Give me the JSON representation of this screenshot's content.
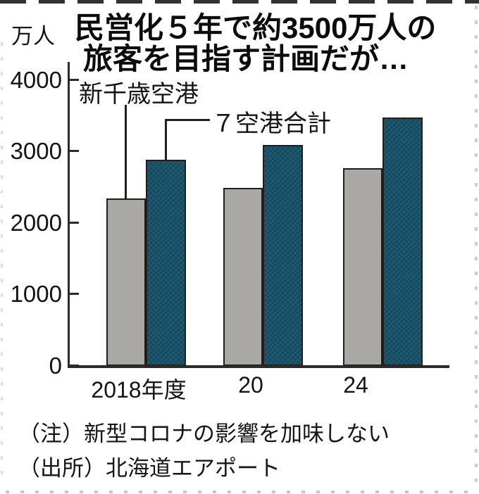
{
  "unit_label": "万人",
  "title": {
    "line1": "民営化５年で約3500万人の",
    "line2": "旅客を目指す計画だが…"
  },
  "notes": {
    "note": "（注）新型コロナの影響を加味しない",
    "source": "（出所）北海道エアポート"
  },
  "colors": {
    "bar_gray": "#a9a8a4",
    "bar_teal": "#1d5a73",
    "axis": "#2b2b2b",
    "text": "#141414"
  },
  "chart_data": {
    "type": "bar",
    "title": "民営化５年で約3500万人の旅客を目指す計画だが…",
    "unit": "万人",
    "categories": [
      "2018年度",
      "20",
      "24"
    ],
    "series": [
      {
        "name": "新千歳空港",
        "color": "#a9a8a4",
        "values": [
          2340,
          2490,
          2770
        ]
      },
      {
        "name": "７空港合計",
        "color": "#1d5a73",
        "values": [
          2880,
          3090,
          3470
        ]
      }
    ],
    "ylim": [
      0,
      4000
    ],
    "yticks": [
      0,
      1000,
      2000,
      3000,
      4000
    ],
    "grid": false,
    "legend_position": "callout-labels-above-first-group",
    "note": "（注）新型コロナの影響を加味しない",
    "source": "（出所）北海道エアポート"
  }
}
